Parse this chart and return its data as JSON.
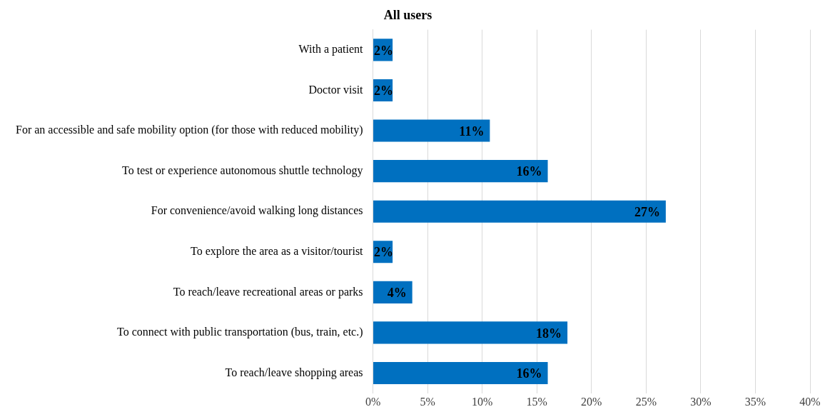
{
  "chart_data": {
    "type": "bar",
    "orientation": "horizontal",
    "title": "All users",
    "categories": [
      "With a patient",
      "Doctor visit",
      "For an accessible and safe mobility option (for those with reduced mobility)",
      "To test or experience autonomous shuttle technology",
      "For convenience/avoid walking long distances",
      "To explore the area as a visitor/tourist",
      "To reach/leave recreational areas or parks",
      "To connect with public transportation (bus, train, etc.)",
      "To reach/leave shopping areas"
    ],
    "values": [
      1.8,
      1.8,
      10.7,
      16,
      26.8,
      1.8,
      3.6,
      17.8,
      16
    ],
    "value_labels": [
      "2%",
      "2%",
      "11%",
      "16%",
      "27%",
      "2%",
      "4%",
      "18%",
      "16%"
    ],
    "color": "#0070c0",
    "xlim": [
      0,
      40
    ],
    "xticks": [
      {
        "value": 0,
        "label": "0%"
      },
      {
        "value": 5,
        "label": "5%"
      },
      {
        "value": 10,
        "label": "10%"
      },
      {
        "value": 15,
        "label": "15%"
      },
      {
        "value": 20,
        "label": "20%"
      },
      {
        "value": 25,
        "label": "25%"
      },
      {
        "value": 30,
        "label": "30%"
      },
      {
        "value": 35,
        "label": "35%"
      },
      {
        "value": 40,
        "label": "40%"
      }
    ],
    "grid": "x",
    "legend": false
  }
}
